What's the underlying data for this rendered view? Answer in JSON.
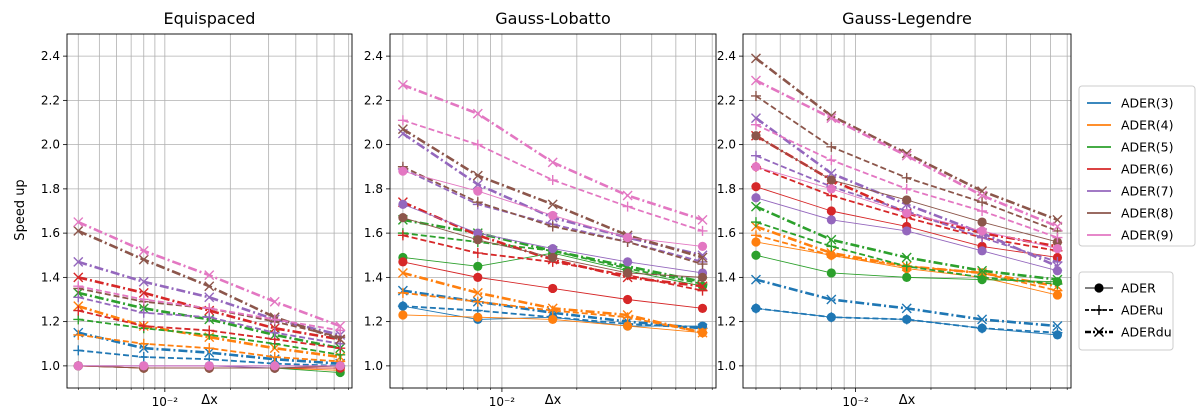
{
  "chart_data": {
    "type": "line",
    "x_scale": "log",
    "x": [
      0.004,
      0.008,
      0.016,
      0.032,
      0.064
    ],
    "xlabel": "Δx",
    "ylabel": "Speed up",
    "ylim": [
      0.9,
      2.5
    ],
    "yticks": [
      "1.0",
      "1.2",
      "1.4",
      "1.6",
      "1.8",
      "2.0",
      "2.2",
      "2.4"
    ],
    "xtick_label": "10⁻²",
    "grid": true,
    "legend": {
      "placement": "right",
      "colors": [
        {
          "name": "ADER(3)",
          "color": "#1f77b4"
        },
        {
          "name": "ADER(4)",
          "color": "#ff7f0e"
        },
        {
          "name": "ADER(5)",
          "color": "#2ca02c"
        },
        {
          "name": "ADER(6)",
          "color": "#d62728"
        },
        {
          "name": "ADER(7)",
          "color": "#9467bd"
        },
        {
          "name": "ADER(8)",
          "color": "#8c564b"
        },
        {
          "name": "ADER(9)",
          "color": "#e377c2"
        }
      ],
      "styles": [
        {
          "name": "ADER",
          "marker": "circle",
          "dash": "solid"
        },
        {
          "name": "ADERu",
          "marker": "plus",
          "dash": "dashed"
        },
        {
          "name": "ADERdu",
          "marker": "x",
          "dash": "dashdot"
        }
      ]
    },
    "panels": [
      {
        "title": "Equispaced",
        "series": [
          {
            "order": 3,
            "variant": "ADER",
            "values": [
              1.0,
              1.0,
              1.0,
              1.0,
              1.0
            ]
          },
          {
            "order": 3,
            "variant": "ADERu",
            "values": [
              1.07,
              1.04,
              1.03,
              1.01,
              1.0
            ]
          },
          {
            "order": 3,
            "variant": "ADERdu",
            "values": [
              1.15,
              1.08,
              1.06,
              1.03,
              1.01
            ]
          },
          {
            "order": 4,
            "variant": "ADER",
            "values": [
              1.0,
              0.99,
              0.99,
              0.99,
              0.98
            ]
          },
          {
            "order": 4,
            "variant": "ADERu",
            "values": [
              1.14,
              1.1,
              1.08,
              1.04,
              1.02
            ]
          },
          {
            "order": 4,
            "variant": "ADERdu",
            "values": [
              1.27,
              1.18,
              1.13,
              1.08,
              1.04
            ]
          },
          {
            "order": 5,
            "variant": "ADER",
            "values": [
              1.0,
              0.99,
              0.99,
              0.99,
              0.97
            ]
          },
          {
            "order": 5,
            "variant": "ADERu",
            "values": [
              1.21,
              1.17,
              1.14,
              1.1,
              1.05
            ]
          },
          {
            "order": 5,
            "variant": "ADERdu",
            "values": [
              1.33,
              1.26,
              1.21,
              1.14,
              1.08
            ]
          },
          {
            "order": 6,
            "variant": "ADER",
            "values": [
              1.0,
              0.99,
              0.99,
              0.99,
              0.99
            ]
          },
          {
            "order": 6,
            "variant": "ADERu",
            "values": [
              1.25,
              1.18,
              1.16,
              1.12,
              1.08
            ]
          },
          {
            "order": 6,
            "variant": "ADERdu",
            "values": [
              1.4,
              1.33,
              1.25,
              1.17,
              1.12
            ]
          },
          {
            "order": 7,
            "variant": "ADER",
            "values": [
              1.0,
              1.0,
              1.0,
              0.99,
              1.0
            ]
          },
          {
            "order": 7,
            "variant": "ADERu",
            "values": [
              1.31,
              1.24,
              1.22,
              1.15,
              1.1
            ]
          },
          {
            "order": 7,
            "variant": "ADERdu",
            "values": [
              1.47,
              1.38,
              1.31,
              1.21,
              1.14
            ]
          },
          {
            "order": 8,
            "variant": "ADER",
            "values": [
              1.0,
              0.99,
              0.99,
              0.99,
              1.0
            ]
          },
          {
            "order": 8,
            "variant": "ADERu",
            "values": [
              1.35,
              1.29,
              1.26,
              1.2,
              1.13
            ]
          },
          {
            "order": 8,
            "variant": "ADERdu",
            "values": [
              1.61,
              1.48,
              1.36,
              1.22,
              1.12
            ]
          },
          {
            "order": 9,
            "variant": "ADER",
            "values": [
              1.0,
              1.0,
              1.0,
              1.0,
              1.0
            ]
          },
          {
            "order": 9,
            "variant": "ADERu",
            "values": [
              1.36,
              1.3,
              1.26,
              1.21,
              1.16
            ]
          },
          {
            "order": 9,
            "variant": "ADERdu",
            "values": [
              1.65,
              1.52,
              1.41,
              1.29,
              1.18
            ]
          }
        ]
      },
      {
        "title": "Gauss-Lobatto",
        "series": [
          {
            "order": 3,
            "variant": "ADER",
            "values": [
              1.27,
              1.21,
              1.22,
              1.18,
              1.18
            ]
          },
          {
            "order": 3,
            "variant": "ADERu",
            "values": [
              1.27,
              1.25,
              1.22,
              1.19,
              1.17
            ]
          },
          {
            "order": 3,
            "variant": "ADERdu",
            "values": [
              1.34,
              1.29,
              1.24,
              1.2,
              1.17
            ]
          },
          {
            "order": 4,
            "variant": "ADER",
            "values": [
              1.23,
              1.22,
              1.21,
              1.18,
              1.15
            ]
          },
          {
            "order": 4,
            "variant": "ADERu",
            "values": [
              1.33,
              1.29,
              1.25,
              1.22,
              1.15
            ]
          },
          {
            "order": 4,
            "variant": "ADERdu",
            "values": [
              1.42,
              1.33,
              1.26,
              1.23,
              1.15
            ]
          },
          {
            "order": 5,
            "variant": "ADER",
            "values": [
              1.49,
              1.45,
              1.51,
              1.43,
              1.36
            ]
          },
          {
            "order": 5,
            "variant": "ADERu",
            "values": [
              1.6,
              1.56,
              1.52,
              1.44,
              1.37
            ]
          },
          {
            "order": 5,
            "variant": "ADERdu",
            "values": [
              1.66,
              1.6,
              1.52,
              1.45,
              1.38
            ]
          },
          {
            "order": 6,
            "variant": "ADER",
            "values": [
              1.47,
              1.4,
              1.35,
              1.3,
              1.26
            ]
          },
          {
            "order": 6,
            "variant": "ADERu",
            "values": [
              1.59,
              1.51,
              1.47,
              1.41,
              1.34
            ]
          },
          {
            "order": 6,
            "variant": "ADERdu",
            "values": [
              1.74,
              1.59,
              1.48,
              1.4,
              1.36
            ]
          },
          {
            "order": 7,
            "variant": "ADER",
            "values": [
              1.73,
              1.6,
              1.53,
              1.47,
              1.42
            ]
          },
          {
            "order": 7,
            "variant": "ADERu",
            "values": [
              1.89,
              1.73,
              1.64,
              1.56,
              1.47
            ]
          },
          {
            "order": 7,
            "variant": "ADERdu",
            "values": [
              2.05,
              1.82,
              1.67,
              1.58,
              1.5
            ]
          },
          {
            "order": 8,
            "variant": "ADER",
            "values": [
              1.67,
              1.57,
              1.49,
              1.42,
              1.4
            ]
          },
          {
            "order": 8,
            "variant": "ADERu",
            "values": [
              1.9,
              1.74,
              1.63,
              1.56,
              1.46
            ]
          },
          {
            "order": 8,
            "variant": "ADERdu",
            "values": [
              2.07,
              1.86,
              1.73,
              1.59,
              1.49
            ]
          },
          {
            "order": 9,
            "variant": "ADER",
            "values": [
              1.88,
              1.79,
              1.68,
              1.58,
              1.54
            ]
          },
          {
            "order": 9,
            "variant": "ADERu",
            "values": [
              2.11,
              2.0,
              1.84,
              1.72,
              1.61
            ]
          },
          {
            "order": 9,
            "variant": "ADERdu",
            "values": [
              2.27,
              2.14,
              1.92,
              1.77,
              1.66
            ]
          }
        ]
      },
      {
        "title": "Gauss-Legendre",
        "series": [
          {
            "order": 3,
            "variant": "ADER",
            "values": [
              1.26,
              1.22,
              1.21,
              1.17,
              1.14
            ]
          },
          {
            "order": 3,
            "variant": "ADERu",
            "values": [
              1.26,
              1.22,
              1.21,
              1.17,
              1.15
            ]
          },
          {
            "order": 3,
            "variant": "ADERdu",
            "values": [
              1.39,
              1.3,
              1.26,
              1.21,
              1.18
            ]
          },
          {
            "order": 4,
            "variant": "ADER",
            "values": [
              1.56,
              1.5,
              1.44,
              1.4,
              1.32
            ]
          },
          {
            "order": 4,
            "variant": "ADERu",
            "values": [
              1.59,
              1.5,
              1.45,
              1.42,
              1.34
            ]
          },
          {
            "order": 4,
            "variant": "ADERdu",
            "values": [
              1.63,
              1.51,
              1.45,
              1.42,
              1.36
            ]
          },
          {
            "order": 5,
            "variant": "ADER",
            "values": [
              1.5,
              1.42,
              1.4,
              1.39,
              1.38
            ]
          },
          {
            "order": 5,
            "variant": "ADERu",
            "values": [
              1.65,
              1.54,
              1.45,
              1.4,
              1.37
            ]
          },
          {
            "order": 5,
            "variant": "ADERdu",
            "values": [
              1.72,
              1.57,
              1.49,
              1.43,
              1.39
            ]
          },
          {
            "order": 6,
            "variant": "ADER",
            "values": [
              1.81,
              1.7,
              1.63,
              1.54,
              1.49
            ]
          },
          {
            "order": 6,
            "variant": "ADERu",
            "values": [
              1.9,
              1.77,
              1.67,
              1.58,
              1.52
            ]
          },
          {
            "order": 6,
            "variant": "ADERdu",
            "values": [
              2.04,
              1.84,
              1.69,
              1.6,
              1.54
            ]
          },
          {
            "order": 7,
            "variant": "ADER",
            "values": [
              1.76,
              1.66,
              1.61,
              1.52,
              1.43
            ]
          },
          {
            "order": 7,
            "variant": "ADERu",
            "values": [
              1.95,
              1.81,
              1.7,
              1.58,
              1.47
            ]
          },
          {
            "order": 7,
            "variant": "ADERdu",
            "values": [
              2.12,
              1.87,
              1.73,
              1.6,
              1.45
            ]
          },
          {
            "order": 8,
            "variant": "ADER",
            "values": [
              2.04,
              1.84,
              1.75,
              1.65,
              1.56
            ]
          },
          {
            "order": 8,
            "variant": "ADERu",
            "values": [
              2.22,
              1.99,
              1.85,
              1.74,
              1.61
            ]
          },
          {
            "order": 8,
            "variant": "ADERdu",
            "values": [
              2.39,
              2.13,
              1.96,
              1.79,
              1.66
            ]
          },
          {
            "order": 9,
            "variant": "ADER",
            "values": [
              1.9,
              1.8,
              1.69,
              1.61,
              1.53
            ]
          },
          {
            "order": 9,
            "variant": "ADERu",
            "values": [
              2.09,
              1.93,
              1.8,
              1.7,
              1.58
            ]
          },
          {
            "order": 9,
            "variant": "ADERdu",
            "values": [
              2.29,
              2.12,
              1.95,
              1.77,
              1.63
            ]
          }
        ]
      }
    ]
  }
}
